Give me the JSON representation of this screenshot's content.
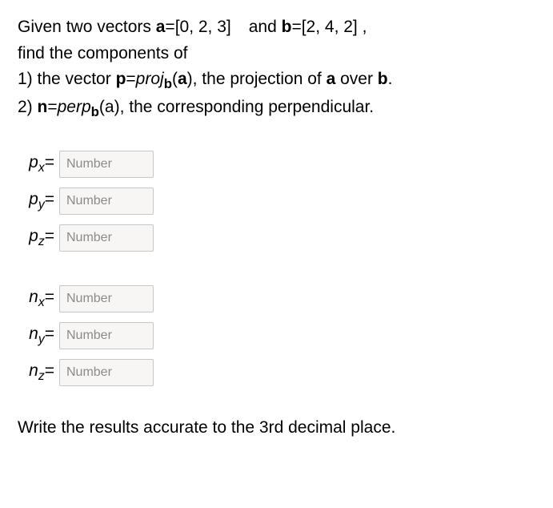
{
  "problem": {
    "line1_pre": "Given two vectors ",
    "aLabel": "a",
    "eq1": "=",
    "aVec": "[0, 2, 3]",
    "line1_mid": "and ",
    "bLabel": "b",
    "bVec": "[2, 4, 2]",
    "line1_post": " ,",
    "line2": "find the components of",
    "item1_pre": "1) the vector ",
    "pLabel": "p",
    "proj_prefix": "proj",
    "proj_sub": "b",
    "proj_arg_open": "(",
    "proj_arg_a": "a",
    "proj_arg_close": ")",
    "item1_post": ", the projection of ",
    "item1_over": " over ",
    "item1_end": ".",
    "item2_pre": "2) ",
    "nLabel": "n",
    "perp_prefix": "perp",
    "perp_sub": "b",
    "item2_post": ", the corresponding perpendicular."
  },
  "fields": {
    "p": {
      "x": {
        "var": "p",
        "sub": "x",
        "eq": "="
      },
      "y": {
        "var": "p",
        "sub": "y",
        "eq": "="
      },
      "z": {
        "var": "p",
        "sub": "z",
        "eq": "="
      }
    },
    "n": {
      "x": {
        "var": "n",
        "sub": "x",
        "eq": "="
      },
      "y": {
        "var": "n",
        "sub": "y",
        "eq": "="
      },
      "z": {
        "var": "n",
        "sub": "z",
        "eq": "="
      }
    }
  },
  "placeholder": "Number",
  "footer": "Write the results accurate to the 3rd decimal place."
}
